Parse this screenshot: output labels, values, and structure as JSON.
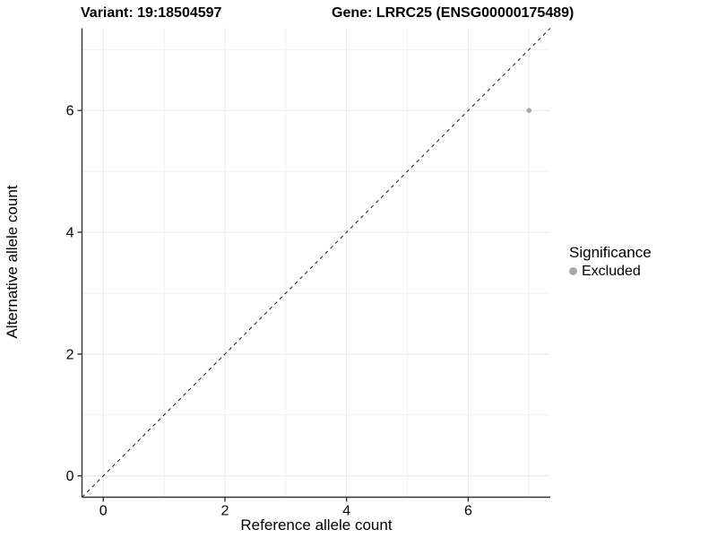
{
  "titles": {
    "variant": "Variant: 19:18504597",
    "gene": "Gene: LRRC25 (ENSG00000175489)"
  },
  "chart_data": {
    "type": "scatter",
    "title": "Variant: 19:18504597   Gene: LRRC25 (ENSG00000175489)",
    "xlabel": "Reference allele count",
    "ylabel": "Alternative allele count",
    "xlim": [
      -0.35,
      7.35
    ],
    "ylim": [
      -0.35,
      7.35
    ],
    "x_major_ticks": [
      0,
      2,
      4,
      6
    ],
    "y_major_ticks": [
      0,
      2,
      4,
      6
    ],
    "x_minor_ticks": [
      1,
      3,
      5,
      7
    ],
    "y_minor_ticks": [
      1,
      3,
      5,
      7
    ],
    "grid": true,
    "reference_line": {
      "type": "abline",
      "slope": 1,
      "intercept": 0,
      "style": "dashed"
    },
    "series": [
      {
        "name": "Excluded",
        "color": "#a8a8a8",
        "points": [
          {
            "x": 7,
            "y": 6
          }
        ]
      }
    ],
    "legend": {
      "title": "Significance",
      "position": "right",
      "entries": [
        {
          "label": "Excluded",
          "color": "#a8a8a8"
        }
      ]
    },
    "colors": {
      "major_grid": "#e7e7e7",
      "minor_grid": "#f1f1f1",
      "axis_line": "#333333",
      "tick_mark": "#333333",
      "tick_label": "#000000",
      "ref_line": "#1a1a1a",
      "point": "#a8a8a8"
    }
  }
}
